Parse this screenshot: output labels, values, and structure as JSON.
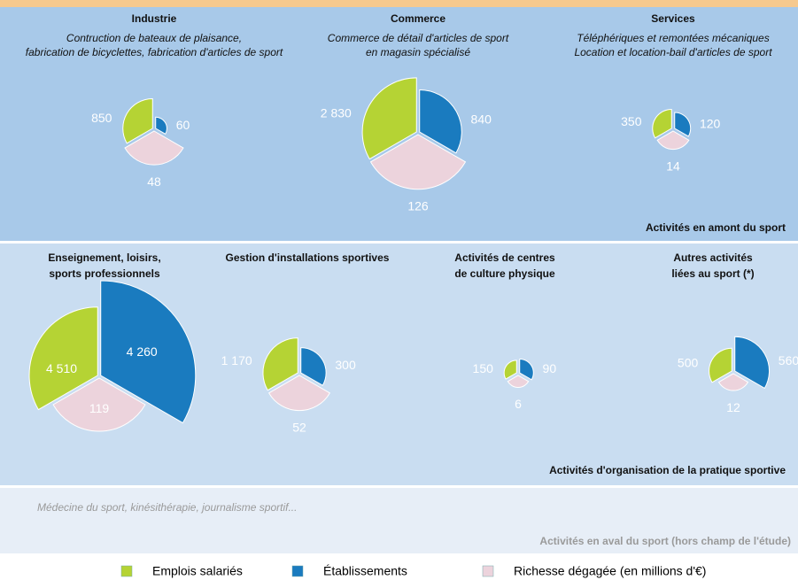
{
  "chart_data": [
    {
      "type": "wedge",
      "title": [
        "Industrie"
      ],
      "subtitle": [
        "Contruction de bateaux de plaisance,",
        "fabrication de bicyclettes, fabrication d'articles de sport"
      ],
      "values": [
        850,
        60,
        48
      ]
    },
    {
      "type": "wedge",
      "title": [
        "Commerce"
      ],
      "subtitle": [
        "Commerce de détail d'articles de sport",
        "en magasin spécialisé"
      ],
      "values": [
        2830,
        840,
        126
      ],
      "value_labels": [
        "2 830",
        "840",
        "126"
      ]
    },
    {
      "type": "wedge",
      "title": [
        "Services"
      ],
      "subtitle": [
        "Téléphériques et remontées mécaniques",
        "Location et location-bail d'articles de sport"
      ],
      "values": [
        350,
        120,
        14
      ]
    },
    {
      "type": "wedge",
      "title": [
        "Enseignement, loisirs,",
        "sports professionnels"
      ],
      "values": [
        4510,
        4260,
        119
      ],
      "value_labels": [
        "4 510",
        "4 260",
        "119"
      ],
      "labels_inside": true
    },
    {
      "type": "wedge",
      "title": [
        "Gestion d'installations sportives"
      ],
      "values": [
        1170,
        300,
        52
      ],
      "value_labels": [
        "1 170",
        "300",
        "52"
      ]
    },
    {
      "type": "wedge",
      "title": [
        "Activités de centres",
        "de culture physique"
      ],
      "values": [
        150,
        90,
        6
      ]
    },
    {
      "type": "wedge",
      "title": [
        "Autres activités",
        "liées au sport (*)"
      ],
      "values": [
        500,
        560,
        12
      ]
    }
  ],
  "zones": [
    {
      "label": "Activités en amont du sport"
    },
    {
      "label": "Activités d'organisation de la pratique sportive"
    },
    {
      "label": "Activités en aval du sport (hors champ de l'étude)",
      "note": "Médecine du sport, kinésithérapie, journalisme sportif..."
    }
  ],
  "legend": [
    {
      "name": "Emplois salariés",
      "color": "#b5d334"
    },
    {
      "name": "Établissements",
      "color": "#1a7bbf"
    },
    {
      "name": "Richesse dégagée (en millions d'€)",
      "color": "#ecd3dc"
    }
  ]
}
